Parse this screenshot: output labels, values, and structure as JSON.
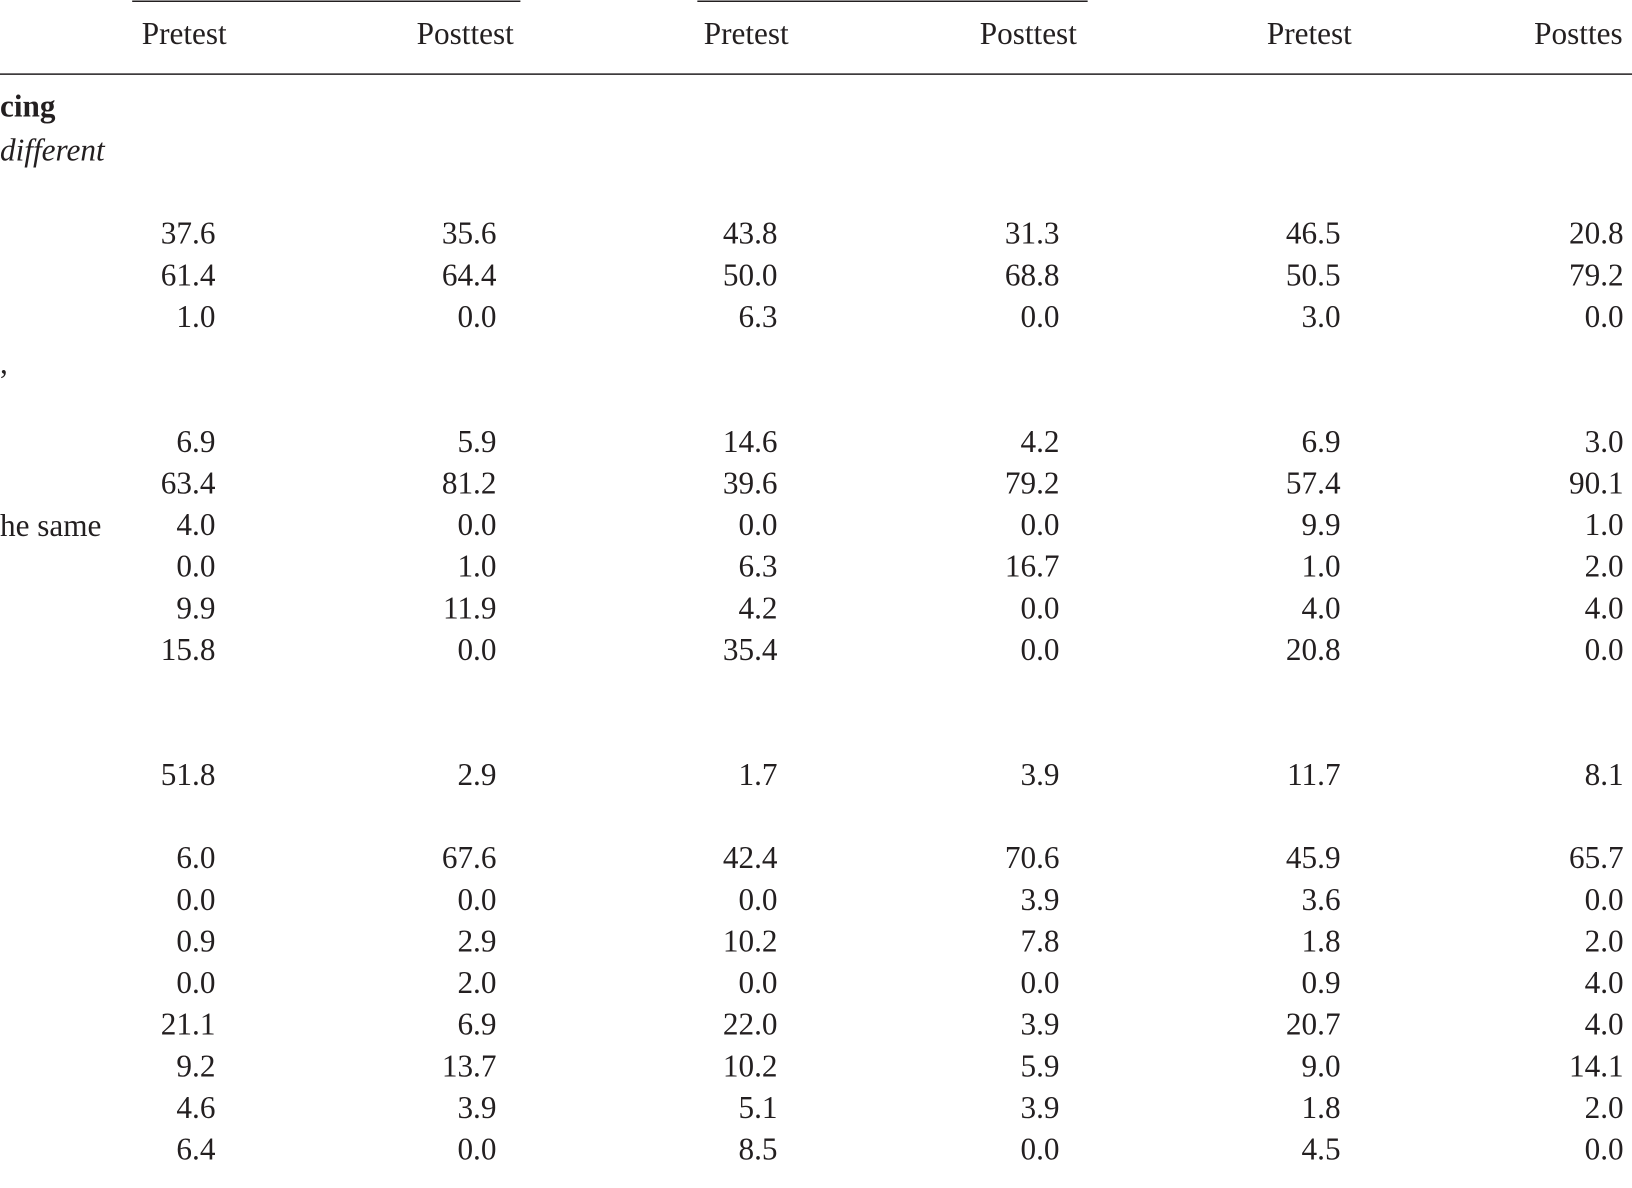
{
  "header": {
    "columns": [
      "Pretest",
      "Posttest",
      "Pretest",
      "Posttest",
      "Pretest",
      "Posttes"
    ]
  },
  "labels": [
    "cing",
    "different",
    ",",
    "he same"
  ],
  "rows": [
    [
      "37.6",
      "35.6",
      "43.8",
      "31.3",
      "46.5",
      "20.8"
    ],
    [
      "61.4",
      "64.4",
      "50.0",
      "68.8",
      "50.5",
      "79.2"
    ],
    [
      "1.0",
      "0.0",
      "6.3",
      "0.0",
      "3.0",
      "0.0"
    ],
    [
      "6.9",
      "5.9",
      "14.6",
      "4.2",
      "6.9",
      "3.0"
    ],
    [
      "63.4",
      "81.2",
      "39.6",
      "79.2",
      "57.4",
      "90.1"
    ],
    [
      "4.0",
      "0.0",
      "0.0",
      "0.0",
      "9.9",
      "1.0"
    ],
    [
      "0.0",
      "1.0",
      "6.3",
      "16.7",
      "1.0",
      "2.0"
    ],
    [
      "9.9",
      "11.9",
      "4.2",
      "0.0",
      "4.0",
      "4.0"
    ],
    [
      "15.8",
      "0.0",
      "35.4",
      "0.0",
      "20.8",
      "0.0"
    ],
    [
      "51.8",
      "2.9",
      "1.7",
      "3.9",
      "11.7",
      "8.1"
    ],
    [
      "6.0",
      "67.6",
      "42.4",
      "70.6",
      "45.9",
      "65.7"
    ],
    [
      "0.0",
      "0.0",
      "0.0",
      "3.9",
      "3.6",
      "0.0"
    ],
    [
      "0.9",
      "2.9",
      "10.2",
      "7.8",
      "1.8",
      "2.0"
    ],
    [
      "0.0",
      "2.0",
      "0.0",
      "0.0",
      "0.9",
      "4.0"
    ],
    [
      "21.1",
      "6.9",
      "22.0",
      "3.9",
      "20.7",
      "4.0"
    ],
    [
      "9.2",
      "13.7",
      "10.2",
      "5.9",
      "9.0",
      "14.1"
    ],
    [
      "4.6",
      "3.9",
      "5.1",
      "3.9",
      "1.8",
      "2.0"
    ],
    [
      "6.4",
      "0.0",
      "8.5",
      "0.0",
      "4.5",
      "0.0"
    ]
  ]
}
